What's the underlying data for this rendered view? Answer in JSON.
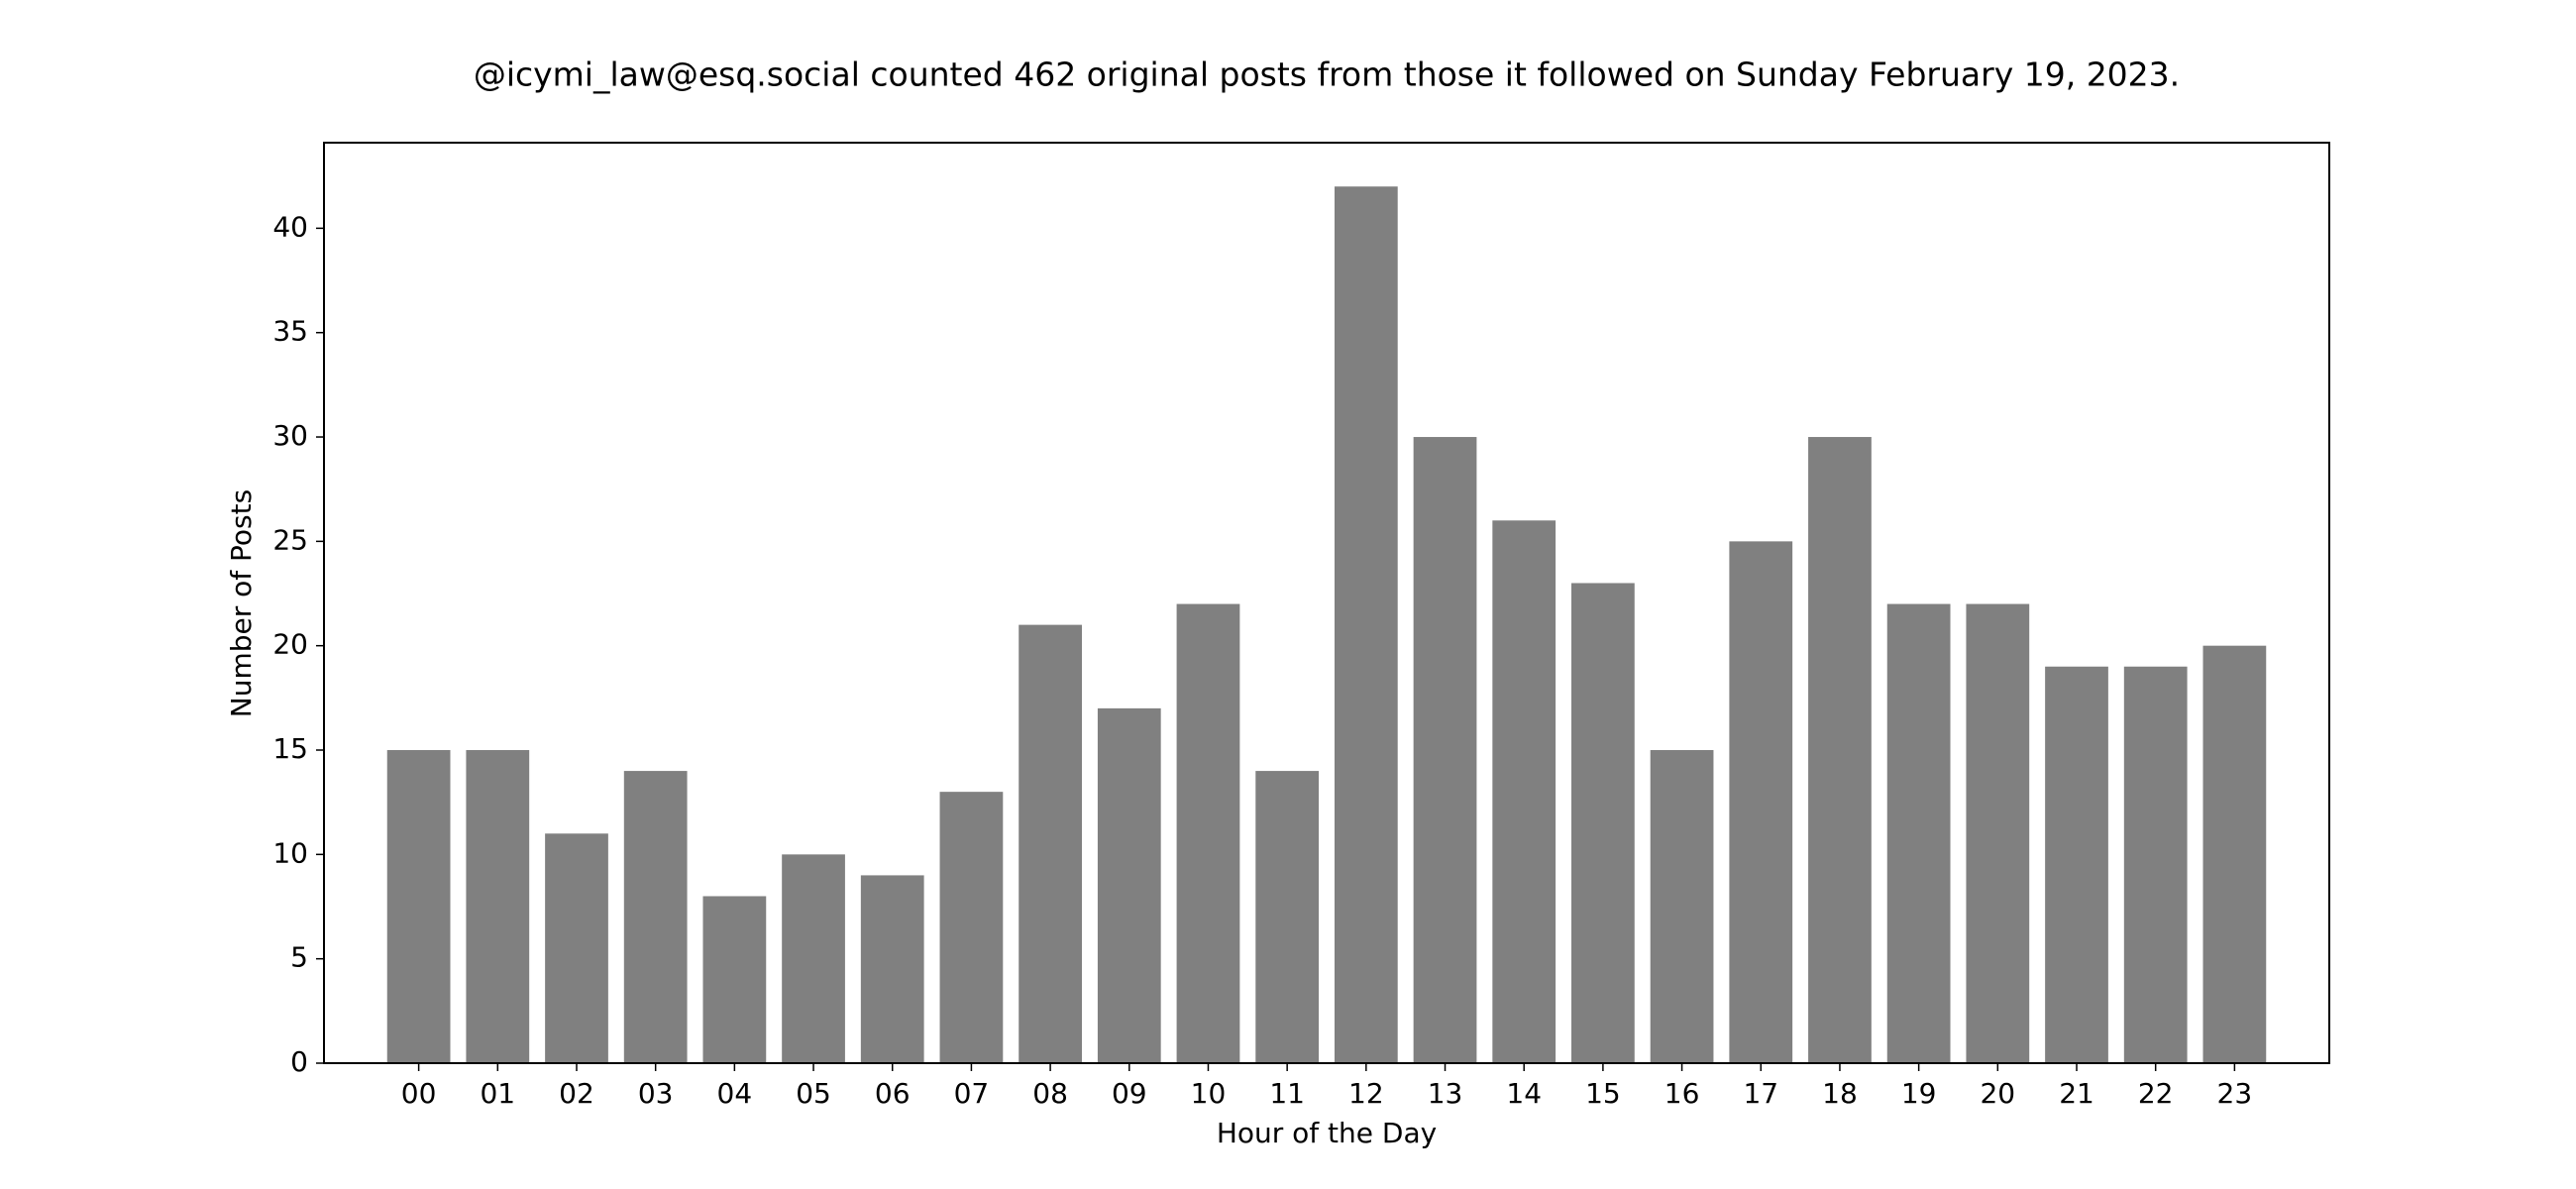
{
  "chart_data": {
    "type": "bar",
    "title": "@icymi_law@esq.social counted 462 original posts from those it followed on Sunday February 19, 2023.",
    "xlabel": "Hour of the Day",
    "ylabel": "Number of Posts",
    "categories": [
      "00",
      "01",
      "02",
      "03",
      "04",
      "05",
      "06",
      "07",
      "08",
      "09",
      "10",
      "11",
      "12",
      "13",
      "14",
      "15",
      "16",
      "17",
      "18",
      "19",
      "20",
      "21",
      "22",
      "23"
    ],
    "values": [
      15,
      15,
      11,
      14,
      8,
      10,
      9,
      13,
      21,
      17,
      22,
      14,
      42,
      30,
      26,
      23,
      15,
      25,
      30,
      22,
      22,
      19,
      19,
      20
    ],
    "ylim": [
      0,
      44.1
    ],
    "yticks": [
      "0",
      "5",
      "10",
      "15",
      "20",
      "25",
      "30",
      "35",
      "40"
    ],
    "bar_color": "#808080",
    "grid": false,
    "legend": "none"
  }
}
